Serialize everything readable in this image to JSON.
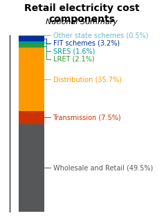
{
  "chart_data": {
    "type": "bar",
    "stacked": true,
    "title": "Retail electricity cost components",
    "subtitle": "National Summary",
    "categories": [
      null
    ],
    "series": [
      {
        "name": "Wholesale and Retail (49.5%)",
        "color": "#555759",
        "values": [
          49.5
        ]
      },
      {
        "name": "Transmission (7.5%)",
        "color": "#cc3300",
        "values": [
          7.5
        ]
      },
      {
        "name": "Distribution (35.7%)",
        "color": "#ff9900",
        "values": [
          35.7
        ]
      },
      {
        "name": "LRET (2.1%)",
        "color": "#339933",
        "values": [
          2.1
        ]
      },
      {
        "name": "SRES (1.6%)",
        "color": "#009999",
        "values": [
          1.6
        ]
      },
      {
        "name": "FIT schemes (3.2%)",
        "color": "#003399",
        "values": [
          3.2
        ]
      },
      {
        "name": "Other state schemes (0.5%)",
        "color": "#66bbcc",
        "values": [
          0.5
        ]
      }
    ],
    "ylim": [
      0,
      100.1
    ],
    "yticks": [],
    "tick_labels": false
  }
}
